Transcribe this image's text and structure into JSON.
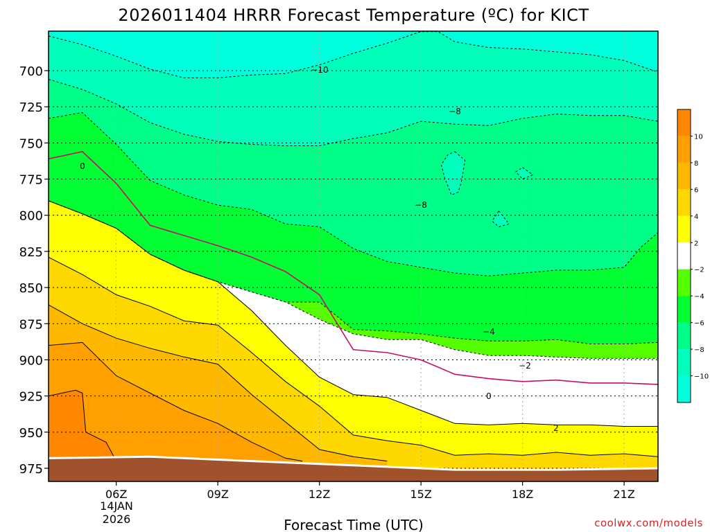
{
  "chart_data": {
    "type": "heatmap",
    "title": "2026011404 HRRR Forecast Temperature (ºC) for KICT",
    "xlabel": "Forecast Time (UTC)",
    "ylabel": "",
    "x_ticks": [
      "06Z",
      "09Z",
      "12Z",
      "15Z",
      "18Z",
      "21Z"
    ],
    "x_first_tick_date": [
      "14JAN",
      "2026"
    ],
    "x_hours": [
      6,
      9,
      12,
      15,
      18,
      21
    ],
    "xlim": [
      4,
      22
    ],
    "y_ticks": [
      700,
      725,
      750,
      775,
      800,
      825,
      850,
      875,
      900,
      925,
      950,
      975
    ],
    "ylim": [
      980,
      672
    ],
    "y_units": "hPa",
    "colorbar": {
      "labels": [
        "10",
        "8",
        "6",
        "4",
        "2",
        "−2",
        "−4",
        "−6",
        "−8",
        "−10"
      ],
      "bins": [
        {
          "min": 10,
          "max": 12,
          "color": "#ff8800"
        },
        {
          "min": 8,
          "max": 10,
          "color": "#ffa000"
        },
        {
          "min": 6,
          "max": 8,
          "color": "#ffb800"
        },
        {
          "min": 4,
          "max": 6,
          "color": "#ffd800"
        },
        {
          "min": 2,
          "max": 4,
          "color": "#ffff00"
        },
        {
          "min": -2,
          "max": 2,
          "color": "#ffffff"
        },
        {
          "min": -4,
          "max": -2,
          "color": "#55ff00"
        },
        {
          "min": -6,
          "max": -4,
          "color": "#00ff33"
        },
        {
          "min": -8,
          "max": -6,
          "color": "#00ff88"
        },
        {
          "min": -10,
          "max": -8,
          "color": "#00ffbb"
        },
        {
          "min": -12,
          "max": -10,
          "color": "#00ffdd"
        }
      ]
    },
    "ground_color": "#a0522d",
    "contour_labels": [
      "−10",
      "−8",
      "−8",
      "−4",
      "−2",
      "0",
      "0",
      "2"
    ],
    "isotherms": [
      {
        "value": -10,
        "line": "dashed",
        "points": [
          [
            4.0,
            676
          ],
          [
            5.0,
            682
          ],
          [
            6.0,
            690
          ],
          [
            7.0,
            699
          ],
          [
            8.0,
            705
          ],
          [
            9.0,
            705
          ],
          [
            10.0,
            703
          ],
          [
            11.0,
            702
          ],
          [
            12.0,
            696
          ],
          [
            13.0,
            688
          ],
          [
            14.0,
            681
          ],
          [
            15.0,
            673
          ],
          [
            15.5,
            673
          ],
          [
            16.0,
            680
          ],
          [
            17.0,
            684
          ],
          [
            18.0,
            685
          ],
          [
            19.0,
            687
          ],
          [
            20.0,
            689
          ],
          [
            21.0,
            693
          ],
          [
            22.0,
            701
          ]
        ]
      },
      {
        "value": -8,
        "line": "dashed",
        "points": [
          [
            4.0,
            706
          ],
          [
            5.0,
            713
          ],
          [
            6.0,
            723
          ],
          [
            7.0,
            736
          ],
          [
            8.0,
            744
          ],
          [
            9.0,
            749
          ],
          [
            10.0,
            751
          ],
          [
            11.0,
            752
          ],
          [
            12.0,
            752
          ],
          [
            13.0,
            747
          ],
          [
            14.0,
            743
          ],
          [
            15.0,
            735
          ],
          [
            16.0,
            737
          ],
          [
            17.0,
            738
          ],
          [
            18.0,
            733
          ],
          [
            19.0,
            730
          ],
          [
            20.0,
            731
          ],
          [
            21.0,
            731
          ],
          [
            22.0,
            735
          ]
        ]
      },
      {
        "value": -6,
        "line": "dashed",
        "points": [
          [
            4.0,
            733
          ],
          [
            5.0,
            729
          ],
          [
            6.0,
            751
          ],
          [
            7.0,
            776
          ],
          [
            8.0,
            786
          ],
          [
            9.0,
            793
          ],
          [
            10.0,
            796
          ],
          [
            11.0,
            806
          ],
          [
            12.0,
            808
          ],
          [
            13.0,
            823
          ],
          [
            14.0,
            832
          ],
          [
            15.0,
            836
          ],
          [
            16.0,
            840
          ],
          [
            17.0,
            842
          ],
          [
            18.0,
            840
          ],
          [
            19.0,
            838
          ],
          [
            20.0,
            838
          ],
          [
            21.0,
            836
          ],
          [
            21.5,
            822
          ],
          [
            22.0,
            812
          ]
        ]
      },
      {
        "value": -4,
        "line": "dashed",
        "points": [
          [
            4.0,
            790
          ],
          [
            5.0,
            799
          ],
          [
            6.0,
            809
          ],
          [
            7.0,
            827
          ],
          [
            8.0,
            838
          ],
          [
            9.0,
            846
          ],
          [
            10.0,
            853
          ],
          [
            11.0,
            860
          ],
          [
            12.0,
            860
          ],
          [
            13.0,
            879
          ],
          [
            14.0,
            880
          ],
          [
            15.0,
            882
          ],
          [
            16.0,
            885
          ],
          [
            17.0,
            887
          ],
          [
            18.0,
            887
          ],
          [
            19.0,
            886
          ],
          [
            20.0,
            889
          ],
          [
            21.0,
            889
          ],
          [
            22.0,
            888
          ]
        ]
      },
      {
        "value": -2,
        "line": "dashed",
        "points": [
          [
            4.0,
            790
          ],
          [
            5.0,
            799
          ],
          [
            6.0,
            809
          ],
          [
            7.0,
            827
          ],
          [
            8.0,
            838
          ],
          [
            9.0,
            846
          ],
          [
            10.0,
            853
          ],
          [
            11.0,
            860
          ],
          [
            12.0,
            872
          ],
          [
            13.0,
            882
          ],
          [
            14.0,
            886
          ],
          [
            15.0,
            886
          ],
          [
            16.0,
            893
          ],
          [
            17.0,
            897
          ],
          [
            18.0,
            897
          ],
          [
            19.0,
            898
          ],
          [
            20.0,
            899
          ],
          [
            21.0,
            899
          ],
          [
            22.0,
            899
          ]
        ]
      },
      {
        "value": 0,
        "line": "solid-magenta",
        "points": [
          [
            4.0,
            761
          ],
          [
            5.0,
            756
          ],
          [
            6.0,
            778
          ],
          [
            7.0,
            807
          ],
          [
            8.0,
            814
          ],
          [
            9.0,
            821
          ],
          [
            10.0,
            829
          ],
          [
            11.0,
            839
          ],
          [
            12.0,
            855
          ],
          [
            13.0,
            893
          ],
          [
            14.0,
            895
          ],
          [
            15.0,
            900
          ],
          [
            16.0,
            910
          ],
          [
            17.0,
            913
          ],
          [
            18.0,
            915
          ],
          [
            19.0,
            914
          ],
          [
            20.0,
            916
          ],
          [
            21.0,
            916
          ],
          [
            22.0,
            917
          ]
        ]
      },
      {
        "value": 2,
        "line": "solid",
        "points": [
          [
            4.0,
            790
          ],
          [
            5.0,
            799
          ],
          [
            6.0,
            809
          ],
          [
            7.0,
            827
          ],
          [
            8.0,
            838
          ],
          [
            9.0,
            846
          ],
          [
            10.0,
            866
          ],
          [
            11.0,
            890
          ],
          [
            12.0,
            912
          ],
          [
            13.0,
            924
          ],
          [
            14.0,
            926
          ],
          [
            15.0,
            935
          ],
          [
            16.0,
            944
          ],
          [
            17.0,
            945
          ],
          [
            18.0,
            944
          ],
          [
            19.0,
            945
          ],
          [
            20.0,
            945
          ],
          [
            21.0,
            946
          ],
          [
            22.0,
            946
          ]
        ]
      },
      {
        "value": 4,
        "line": "solid",
        "points": [
          [
            4.0,
            829
          ],
          [
            5.0,
            841
          ],
          [
            6.0,
            855
          ],
          [
            7.0,
            863
          ],
          [
            8.0,
            873
          ],
          [
            9.0,
            876
          ],
          [
            10.0,
            895
          ],
          [
            11.0,
            915
          ],
          [
            12.0,
            932
          ],
          [
            13.0,
            952
          ],
          [
            14.0,
            956
          ],
          [
            15.0,
            959
          ],
          [
            16.0,
            966
          ],
          [
            17.0,
            965
          ],
          [
            18.0,
            966
          ],
          [
            19.0,
            964
          ],
          [
            20.0,
            966
          ],
          [
            21.0,
            965
          ],
          [
            22.0,
            967
          ]
        ]
      },
      {
        "value": 6,
        "line": "solid",
        "points": [
          [
            4.0,
            862
          ],
          [
            5.0,
            875
          ],
          [
            6.0,
            885
          ],
          [
            7.0,
            892
          ],
          [
            8.0,
            898
          ],
          [
            9.0,
            903
          ],
          [
            10.0,
            924
          ],
          [
            11.0,
            943
          ],
          [
            12.0,
            962
          ],
          [
            13.0,
            967
          ],
          [
            14.0,
            970
          ]
        ]
      },
      {
        "value": 8,
        "line": "solid",
        "points": [
          [
            4.0,
            890
          ],
          [
            5.0,
            888
          ],
          [
            6.0,
            911
          ],
          [
            7.0,
            923
          ],
          [
            8.0,
            935
          ],
          [
            9.0,
            944
          ],
          [
            10.0,
            957
          ],
          [
            11.0,
            968
          ],
          [
            11.5,
            970
          ]
        ]
      },
      {
        "value": 10,
        "line": "solid",
        "points": [
          [
            4.0,
            925
          ],
          [
            4.8,
            921
          ],
          [
            5.0,
            923
          ],
          [
            5.1,
            950
          ],
          [
            5.7,
            957
          ],
          [
            6.0,
            970
          ],
          [
            6.2,
            971
          ]
        ]
      }
    ]
  }
}
